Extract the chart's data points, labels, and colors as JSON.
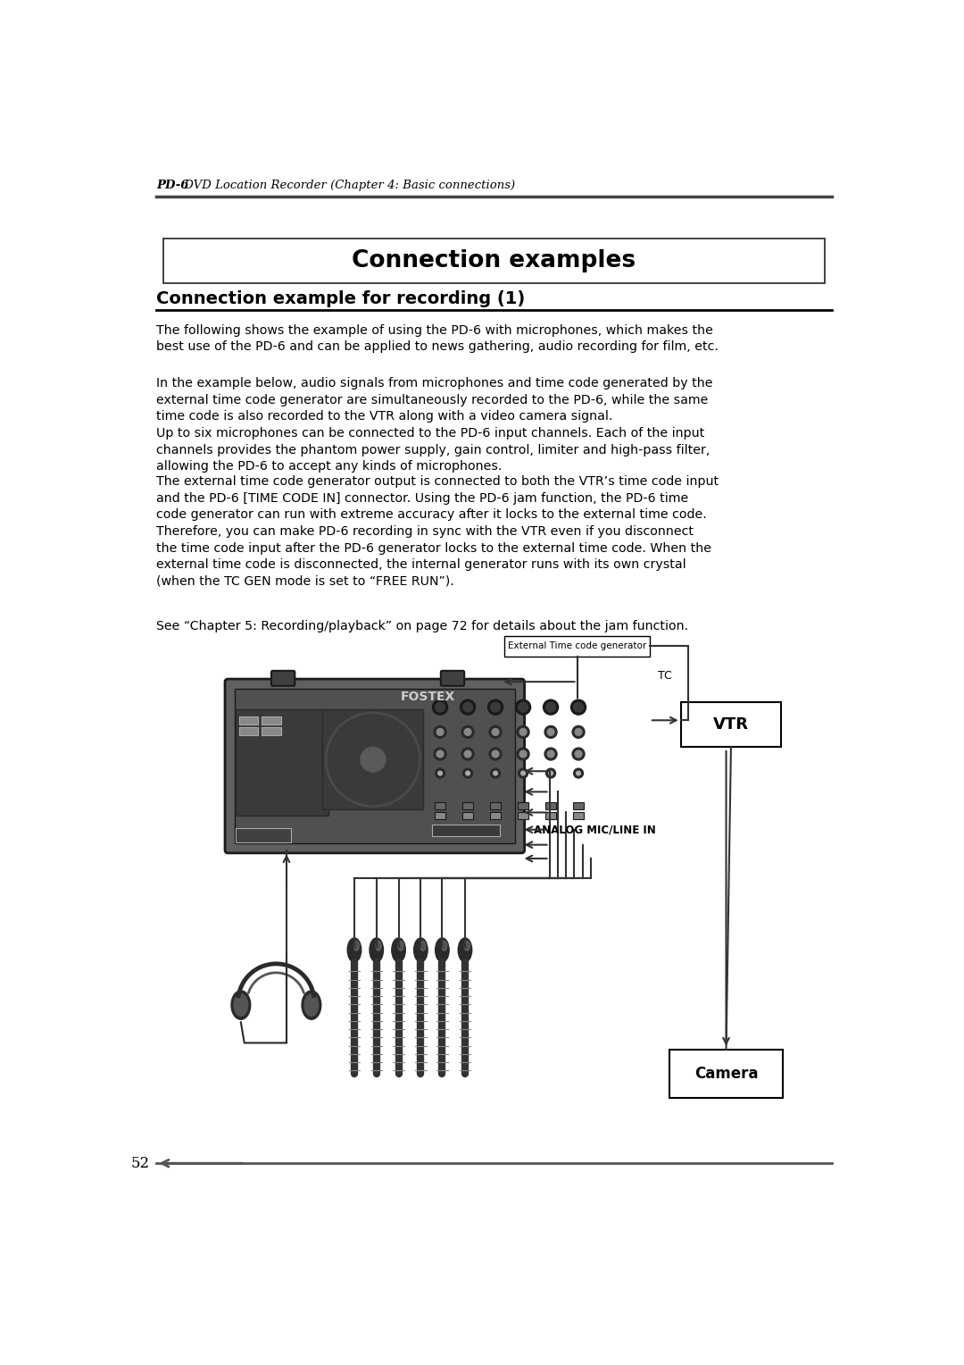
{
  "page_number": "52",
  "header_bold": "PD-6",
  "header_text": " DVD Location Recorder (Chapter 4: Basic connections)",
  "main_title": "Connection examples",
  "section_title": "Connection example for recording (1)",
  "para1": "The following shows the example of using the PD-6 with microphones, which makes the\nbest use of the PD-6 and can be applied to news gathering, audio recording for film, etc.",
  "para2": "In the example below, audio signals from microphones and time code generated by the\nexternal time code generator are simultaneously recorded to the PD-6, while the same\ntime code is also recorded to the VTR along with a video camera signal.\nUp to six microphones can be connected to the PD-6 input channels. Each of the input\nchannels provides the phantom power supply, gain control, limiter and high-pass filter,\nallowing the PD-6 to accept any kinds of microphones.",
  "para3": "The external time code generator output is connected to both the VTR’s time code input\nand the PD-6 [TIME CODE IN] connector. Using the PD-6 jam function, the PD-6 time\ncode generator can run with extreme accuracy after it locks to the external time code.\nTherefore, you can make PD-6 recording in sync with the VTR even if you disconnect\nthe time code input after the PD-6 generator locks to the external time code. When the\nexternal time code is disconnected, the internal generator runs with its own crystal\n(when the TC GEN mode is set to “FREE RUN”).",
  "para4": "See “Chapter 5: Recording/playback” on page 72 for details about the jam function.",
  "label_tc_gen": "External Time code generator",
  "label_vtr": "VTR",
  "label_analog": "ANALOG MIC/LINE IN",
  "label_tc": "TC",
  "label_camera": "Camera",
  "bg_color": "#ffffff",
  "text_color": "#000000",
  "header_line_color": "#555555",
  "box_border_color": "#333333",
  "device_fill": "#686868",
  "device_inner": "#595959",
  "device_dark": "#2a2a2a",
  "device_mid": "#7a7a7a"
}
